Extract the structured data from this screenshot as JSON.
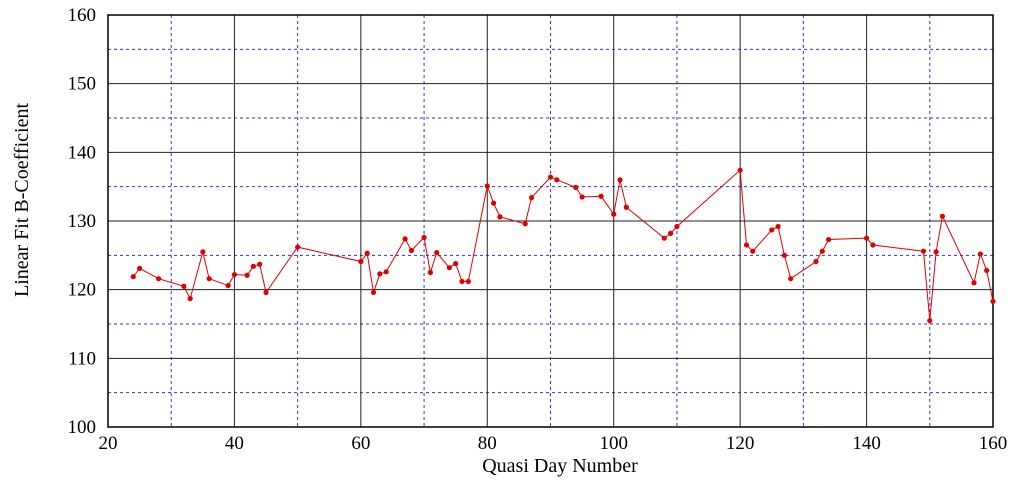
{
  "chart_data": {
    "type": "line",
    "x_label": "Quasi Day Number",
    "y_label": "Linear Fit B-Coefficient",
    "xlim": [
      20,
      160
    ],
    "ylim": [
      100,
      160
    ],
    "xticks": [
      20,
      40,
      60,
      80,
      100,
      120,
      140,
      160
    ],
    "yticks": [
      100,
      110,
      120,
      130,
      140,
      150,
      160
    ],
    "minor_xticks": [
      30,
      50,
      70,
      90,
      110,
      130,
      150
    ],
    "minor_yticks": [
      105,
      115,
      125,
      135,
      145,
      155
    ],
    "grid": true,
    "series": [
      {
        "color": "#e00000",
        "x": [
          24,
          25,
          28,
          32,
          33,
          35,
          36,
          39,
          40,
          42,
          43,
          44,
          45,
          50,
          60,
          61,
          62,
          63,
          64,
          67,
          68,
          70,
          71,
          72,
          74,
          75,
          76,
          77,
          80,
          81,
          82,
          86,
          87,
          90,
          91,
          94,
          95,
          98,
          100,
          101,
          102,
          108,
          109,
          110,
          120,
          121,
          122,
          125,
          126,
          127,
          128,
          132,
          133,
          134,
          140,
          141,
          149,
          150,
          151,
          152,
          157,
          158,
          159,
          160
        ],
        "values": [
          121.9,
          123.1,
          121.6,
          120.5,
          118.7,
          125.5,
          121.6,
          120.6,
          122.2,
          122.1,
          123.4,
          123.7,
          119.6,
          126.2,
          124.1,
          125.3,
          119.6,
          122.3,
          122.6,
          127.4,
          125.7,
          127.6,
          122.5,
          125.4,
          123.2,
          123.8,
          121.2,
          121.2,
          135.1,
          132.6,
          130.6,
          129.6,
          133.4,
          136.4,
          136.0,
          134.9,
          133.5,
          133.6,
          131.0,
          136.0,
          132.0,
          127.5,
          128.2,
          129.2,
          137.4,
          126.5,
          125.6,
          128.7,
          129.2,
          125.0,
          121.6,
          124.1,
          125.6,
          127.3,
          127.5,
          126.5,
          125.6,
          115.5,
          125.5,
          130.7,
          121.0,
          125.2,
          122.8,
          118.3
        ]
      }
    ]
  }
}
